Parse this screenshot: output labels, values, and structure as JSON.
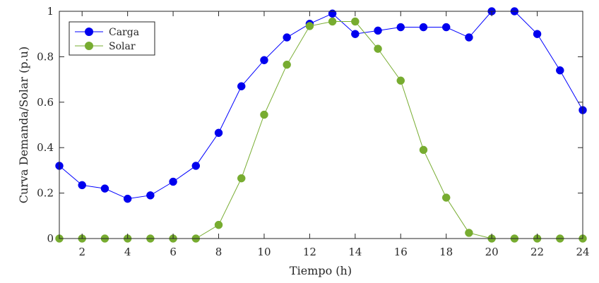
{
  "chart_data": {
    "type": "line",
    "title": "",
    "xlabel": "Tiempo (h)",
    "ylabel": "Curva Demanda/Solar (p.u)",
    "xlim": [
      1,
      24
    ],
    "ylim": [
      0,
      1
    ],
    "xticks": [
      2,
      4,
      6,
      8,
      10,
      12,
      14,
      16,
      18,
      20,
      22,
      24
    ],
    "yticks": [
      0,
      0.2,
      0.4,
      0.6,
      0.8,
      1
    ],
    "ytick_labels": [
      "0",
      "0.2",
      "0.4",
      "0.6",
      "0.8",
      "1"
    ],
    "grid": false,
    "legend_position": "top-left",
    "x": [
      1,
      2,
      3,
      4,
      5,
      6,
      7,
      8,
      9,
      10,
      11,
      12,
      13,
      14,
      15,
      16,
      17,
      18,
      19,
      20,
      21,
      22,
      23,
      24
    ],
    "series": [
      {
        "name": "Carga",
        "color": "#0000ff",
        "marker_color": "#0000ee",
        "values": [
          0.32,
          0.235,
          0.22,
          0.175,
          0.19,
          0.25,
          0.32,
          0.465,
          0.67,
          0.785,
          0.885,
          0.945,
          0.99,
          0.9,
          0.915,
          0.93,
          0.93,
          0.93,
          0.885,
          1.0,
          1.0,
          0.9,
          0.74,
          0.565
        ]
      },
      {
        "name": "Solar",
        "color": "#77ac30",
        "marker_color": "#77ac30",
        "values": [
          0,
          0,
          0,
          0,
          0,
          0,
          0,
          0.06,
          0.265,
          0.545,
          0.765,
          0.935,
          0.955,
          0.955,
          0.835,
          0.695,
          0.39,
          0.18,
          0.025,
          0,
          0,
          0,
          0,
          0
        ]
      }
    ]
  }
}
